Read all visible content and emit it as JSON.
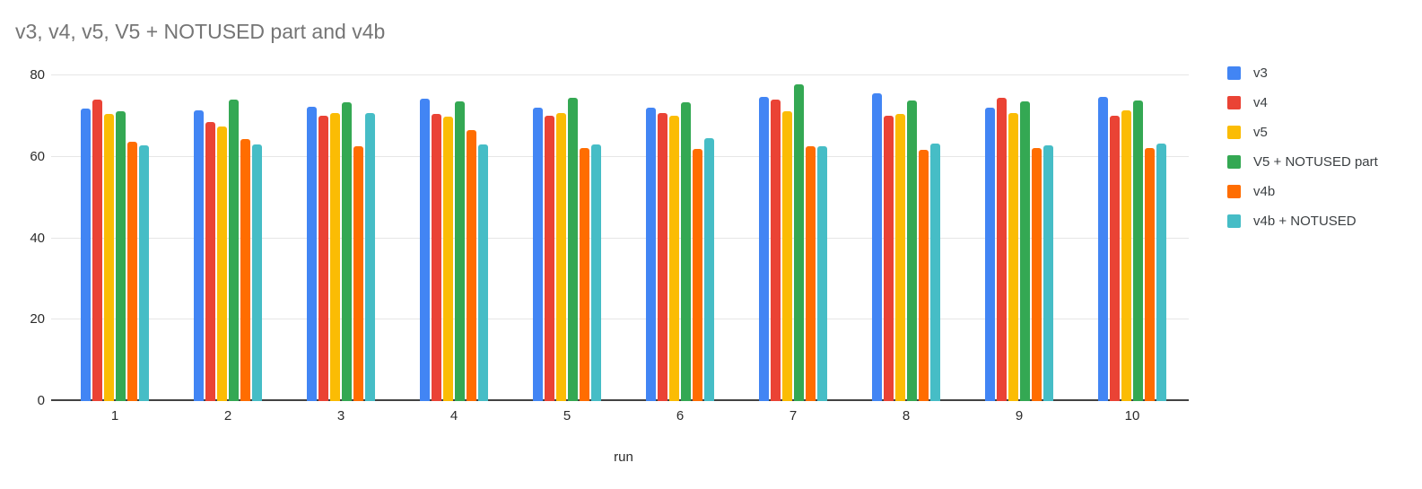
{
  "chart_data": {
    "type": "bar",
    "title": "v3, v4, v5, V5 + NOTUSED part and v4b",
    "xlabel": "run",
    "ylabel": "",
    "categories": [
      "1",
      "2",
      "3",
      "4",
      "5",
      "6",
      "7",
      "8",
      "9",
      "10"
    ],
    "y_ticks": [
      0,
      20,
      40,
      60,
      80
    ],
    "ylim": [
      0,
      80
    ],
    "grid": true,
    "legend_position": "right",
    "series": [
      {
        "name": "v3",
        "color": "#4285F4",
        "values": [
          71.8,
          71.3,
          72.4,
          74.2,
          72.0,
          72.1,
          74.7,
          75.5,
          72.1,
          74.8
        ]
      },
      {
        "name": "v4",
        "color": "#EA4335",
        "values": [
          74.1,
          68.6,
          70.1,
          70.5,
          70.1,
          70.8,
          74.1,
          70.1,
          74.5,
          70.1
        ]
      },
      {
        "name": "v5",
        "color": "#FBBC04",
        "values": [
          70.5,
          67.4,
          70.8,
          69.8,
          70.8,
          70.0,
          71.2,
          70.6,
          70.8,
          71.3
        ]
      },
      {
        "name": "V5 + NOTUSED part",
        "color": "#34A853",
        "values": [
          71.2,
          74.0,
          73.5,
          73.6,
          74.4,
          73.4,
          77.8,
          73.8,
          73.6,
          73.8
        ]
      },
      {
        "name": "v4b",
        "color": "#FF6D01",
        "values": [
          63.8,
          64.3,
          62.6,
          66.6,
          62.2,
          61.9,
          62.5,
          61.8,
          62.2,
          62.1
        ]
      },
      {
        "name": "v4b + NOTUSED",
        "color": "#46BDC6",
        "values": [
          62.9,
          63.0,
          70.8,
          63.0,
          63.0,
          64.6,
          62.7,
          63.3,
          62.8,
          63.3
        ]
      }
    ]
  },
  "style_colors": {
    "title": "#757575",
    "axis": "#424242",
    "gridline": "#e6e6e6",
    "tick_text": "#2b2b2b",
    "legend_text": "#3c4043"
  }
}
